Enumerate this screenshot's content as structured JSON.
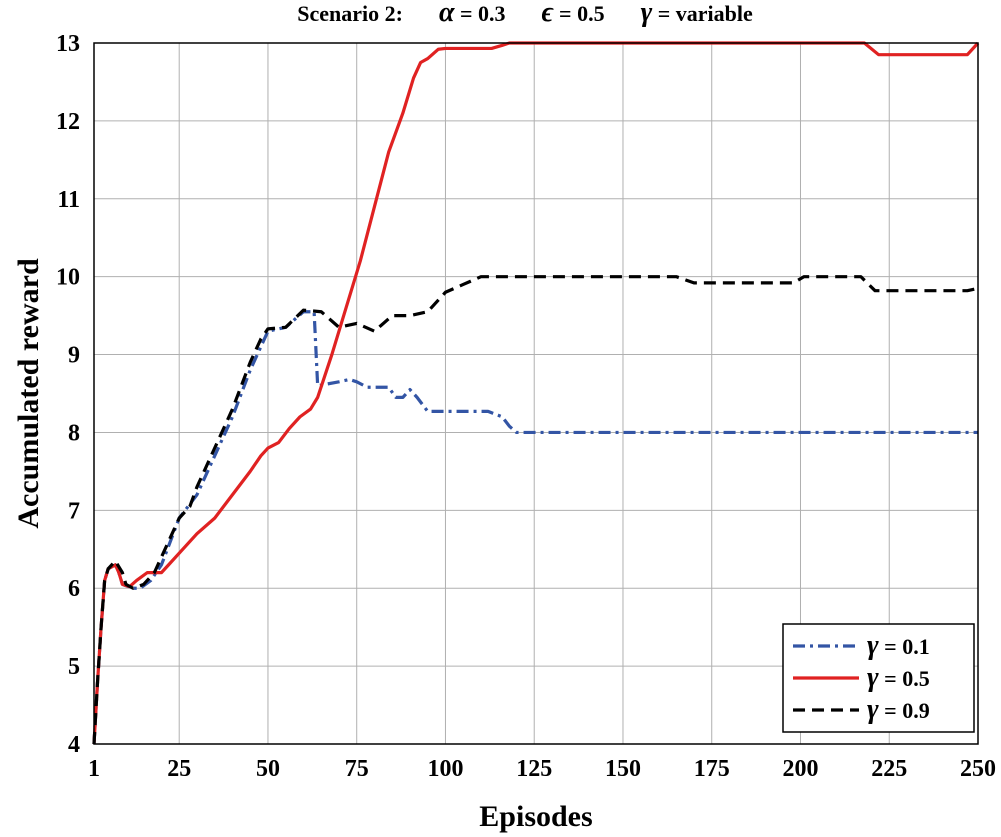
{
  "chart_data": {
    "type": "line",
    "title": {
      "prefix": "Scenario 2:",
      "params": [
        {
          "symbol": "α",
          "rest": " = 0.3"
        },
        {
          "symbol": "ϵ",
          "rest": " = 0.5"
        },
        {
          "symbol": "γ",
          "rest": " = variable"
        }
      ]
    },
    "xlabel": "Episodes",
    "ylabel": "Accumulated reward",
    "xlim": [
      1,
      250
    ],
    "ylim": [
      4,
      13
    ],
    "xticks": [
      1,
      25,
      50,
      75,
      100,
      125,
      150,
      175,
      200,
      225,
      250
    ],
    "yticks": [
      4,
      5,
      6,
      7,
      8,
      9,
      10,
      11,
      12,
      13
    ],
    "grid": true,
    "legend_position": "bottom-right",
    "series": [
      {
        "name": "γ = 0.1",
        "symbol": "γ",
        "label_rest": " = 0.1",
        "color": "#3355a5",
        "dash": "dashdot",
        "points": [
          [
            1,
            4.0
          ],
          [
            2,
            4.8
          ],
          [
            3,
            5.5
          ],
          [
            4,
            6.1
          ],
          [
            5,
            6.25
          ],
          [
            7,
            6.3
          ],
          [
            8,
            6.2
          ],
          [
            9,
            6.05
          ],
          [
            12,
            6.0
          ],
          [
            14,
            6.0
          ],
          [
            17,
            6.1
          ],
          [
            20,
            6.3
          ],
          [
            25,
            6.9
          ],
          [
            30,
            7.2
          ],
          [
            35,
            7.7
          ],
          [
            40,
            8.2
          ],
          [
            45,
            8.8
          ],
          [
            50,
            9.3
          ],
          [
            55,
            9.35
          ],
          [
            60,
            9.55
          ],
          [
            63,
            9.55
          ],
          [
            64,
            8.6
          ],
          [
            70,
            8.65
          ],
          [
            73,
            8.68
          ],
          [
            75,
            8.65
          ],
          [
            78,
            8.58
          ],
          [
            84,
            8.58
          ],
          [
            86,
            8.45
          ],
          [
            88,
            8.45
          ],
          [
            90,
            8.55
          ],
          [
            92,
            8.45
          ],
          [
            95,
            8.27
          ],
          [
            112,
            8.27
          ],
          [
            116,
            8.2
          ],
          [
            118,
            8.08
          ],
          [
            120,
            8.0
          ],
          [
            250,
            8.0
          ]
        ]
      },
      {
        "name": "γ = 0.5",
        "symbol": "γ",
        "label_rest": " = 0.5",
        "color": "#e02222",
        "dash": "solid",
        "points": [
          [
            1,
            4.0
          ],
          [
            2,
            4.8
          ],
          [
            3,
            5.5
          ],
          [
            4,
            6.1
          ],
          [
            5,
            6.25
          ],
          [
            7,
            6.3
          ],
          [
            8,
            6.2
          ],
          [
            9,
            6.05
          ],
          [
            11,
            6.02
          ],
          [
            13,
            6.1
          ],
          [
            16,
            6.2
          ],
          [
            20,
            6.2
          ],
          [
            22,
            6.3
          ],
          [
            25,
            6.45
          ],
          [
            30,
            6.7
          ],
          [
            35,
            6.9
          ],
          [
            40,
            7.2
          ],
          [
            45,
            7.5
          ],
          [
            48,
            7.7
          ],
          [
            50,
            7.8
          ],
          [
            53,
            7.87
          ],
          [
            56,
            8.05
          ],
          [
            59,
            8.2
          ],
          [
            62,
            8.3
          ],
          [
            64,
            8.45
          ],
          [
            68,
            9.0
          ],
          [
            72,
            9.6
          ],
          [
            76,
            10.2
          ],
          [
            80,
            10.9
          ],
          [
            84,
            11.6
          ],
          [
            88,
            12.1
          ],
          [
            91,
            12.55
          ],
          [
            93,
            12.75
          ],
          [
            95,
            12.8
          ],
          [
            98,
            12.92
          ],
          [
            100,
            12.93
          ],
          [
            113,
            12.93
          ],
          [
            116,
            12.97
          ],
          [
            118,
            13.0
          ],
          [
            218,
            13.0
          ],
          [
            222,
            12.85
          ],
          [
            247,
            12.85
          ],
          [
            250,
            13.0
          ]
        ]
      },
      {
        "name": "γ = 0.9",
        "symbol": "γ",
        "label_rest": " = 0.9",
        "color": "#000000",
        "dash": "dashed",
        "points": [
          [
            1,
            4.0
          ],
          [
            2,
            4.8
          ],
          [
            3,
            5.5
          ],
          [
            4,
            6.1
          ],
          [
            5,
            6.25
          ],
          [
            7,
            6.35
          ],
          [
            9,
            6.2
          ],
          [
            10,
            6.05
          ],
          [
            12,
            6.0
          ],
          [
            15,
            6.05
          ],
          [
            18,
            6.2
          ],
          [
            20,
            6.4
          ],
          [
            23,
            6.7
          ],
          [
            25,
            6.9
          ],
          [
            28,
            7.05
          ],
          [
            30,
            7.3
          ],
          [
            35,
            7.8
          ],
          [
            40,
            8.3
          ],
          [
            45,
            8.9
          ],
          [
            48,
            9.2
          ],
          [
            50,
            9.33
          ],
          [
            55,
            9.35
          ],
          [
            60,
            9.57
          ],
          [
            65,
            9.55
          ],
          [
            70,
            9.35
          ],
          [
            75,
            9.4
          ],
          [
            80,
            9.3
          ],
          [
            85,
            9.5
          ],
          [
            90,
            9.5
          ],
          [
            95,
            9.55
          ],
          [
            100,
            9.8
          ],
          [
            105,
            9.9
          ],
          [
            110,
            10.0
          ],
          [
            165,
            10.0
          ],
          [
            170,
            9.92
          ],
          [
            198,
            9.92
          ],
          [
            201,
            10.0
          ],
          [
            217,
            10.0
          ],
          [
            221,
            9.82
          ],
          [
            247,
            9.82
          ],
          [
            250,
            9.85
          ]
        ]
      }
    ]
  }
}
